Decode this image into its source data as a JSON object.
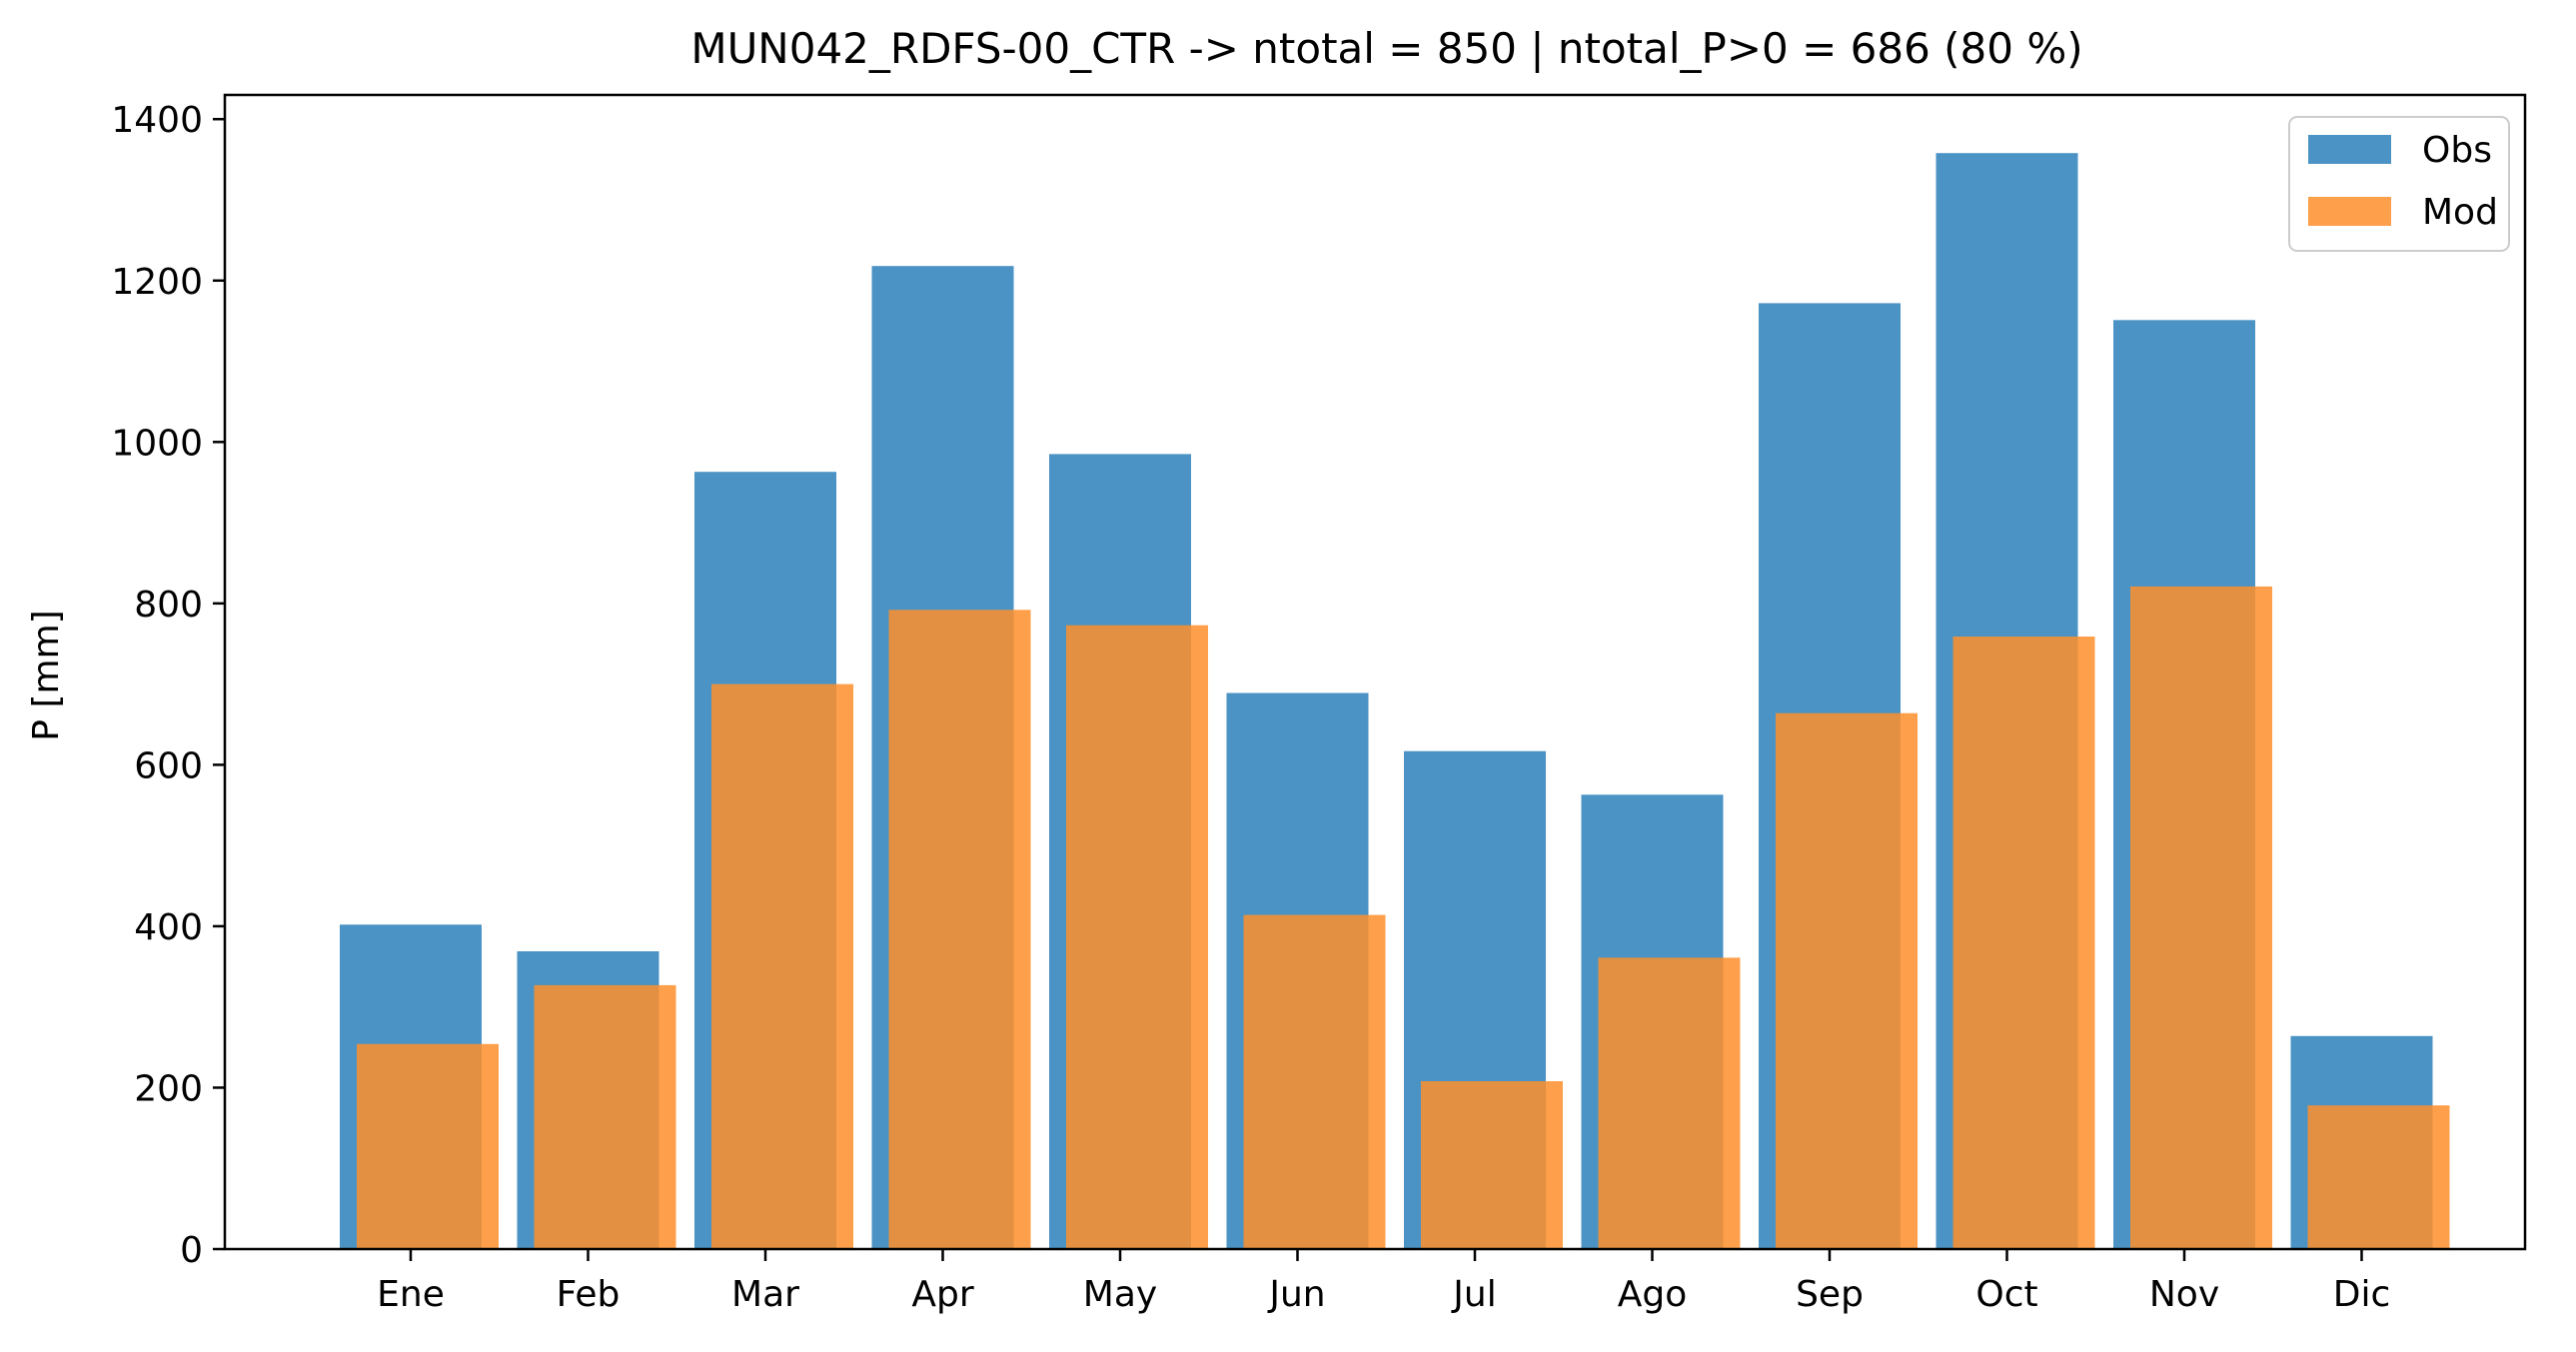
{
  "chart_data": {
    "type": "bar",
    "title": "MUN042_RDFS-00_CTR -> ntotal = 850 | ntotal_P>0 = 686 (80 %)",
    "xlabel": "",
    "ylabel": "P [mm]",
    "categories": [
      "Ene",
      "Feb",
      "Mar",
      "Apr",
      "May",
      "Jun",
      "Jul",
      "Ago",
      "Sep",
      "Oct",
      "Nov",
      "Dic"
    ],
    "series": [
      {
        "name": "Obs",
        "color": "#4b93c4",
        "values": [
          402,
          369,
          963,
          1218,
          985,
          689,
          617,
          563,
          1172,
          1358,
          1151,
          264
        ]
      },
      {
        "name": "Mod",
        "color": "#fe8f2c",
        "opacity": 0.85,
        "values": [
          254,
          327,
          700,
          792,
          773,
          414,
          208,
          361,
          664,
          759,
          821,
          178
        ]
      }
    ],
    "ylim": [
      0,
      1430
    ],
    "yticks": [
      "0",
      "200",
      "400",
      "600",
      "800",
      "1000",
      "1200",
      "1400"
    ],
    "grid": false,
    "legend": "top-right",
    "overlay": "mod-offset-right"
  }
}
